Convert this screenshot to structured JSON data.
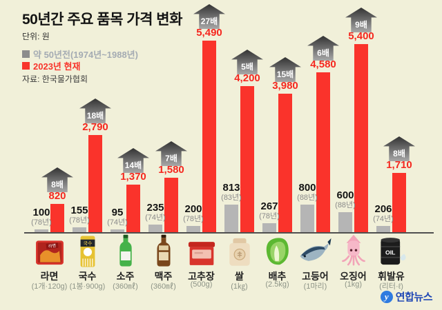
{
  "header": {
    "title": "50년간 주요 품목 가격 변화",
    "unit": "단위: 원",
    "legend_old": "약 50년전(1974년~1988년)",
    "legend_new": "2023년 현재",
    "source": "자료: 한국물가협회"
  },
  "footer": {
    "credit": "연합뉴스"
  },
  "colors": {
    "background": "#f1f0d9",
    "bar_old": "#b5b5b5",
    "bar_new": "#fa332b",
    "new_value_text": "#f5271f",
    "legend_old_text": "#a4abb3",
    "badge_gradient_top": "#333333",
    "badge_gradient_bottom": "#a8a8a8",
    "credit_blue": "#1f47b5"
  },
  "chart_data": {
    "type": "bar",
    "title": "50년간 주요 품목 가격 변화",
    "unit": "원",
    "legend_position": "top-left",
    "grid": false,
    "series": [
      {
        "name": "약 50년전(1974년~1988년)",
        "color": "#b5b5b5"
      },
      {
        "name": "2023년 현재",
        "color": "#fa332b"
      }
    ],
    "items": [
      {
        "name": "라면",
        "quantity": "(1개·120g)",
        "icon": "ramen-pack-icon",
        "old_value": 100,
        "old_label": "100",
        "old_year": "(78년)",
        "new_value": 820,
        "new_label": "820",
        "multiplier": "8배"
      },
      {
        "name": "국수",
        "quantity": "(1봉·900g)",
        "icon": "noodle-pack-icon",
        "old_value": 155,
        "old_label": "155",
        "old_year": "(78년)",
        "new_value": 2790,
        "new_label": "2,790",
        "multiplier": "18배"
      },
      {
        "name": "소주",
        "quantity": "(360㎖)",
        "icon": "soju-bottle-icon",
        "old_value": 95,
        "old_label": "95",
        "old_year": "(74년)",
        "new_value": 1370,
        "new_label": "1,370",
        "multiplier": "14배"
      },
      {
        "name": "맥주",
        "quantity": "(360㎖)",
        "icon": "beer-bottle-icon",
        "old_value": 235,
        "old_label": "235",
        "old_year": "(74년)",
        "new_value": 1580,
        "new_label": "1,580",
        "multiplier": "7배"
      },
      {
        "name": "고추장",
        "quantity": "(500g)",
        "icon": "gochujang-tub-icon",
        "old_value": 200,
        "old_label": "200",
        "old_year": "(78년)",
        "new_value": 5490,
        "new_label": "5,490",
        "multiplier": "27배"
      },
      {
        "name": "쌀",
        "quantity": "(1㎏)",
        "icon": "rice-sack-icon",
        "old_value": 813,
        "old_label": "813",
        "old_year": "(83년)",
        "new_value": 4200,
        "new_label": "4,200",
        "multiplier": "5배"
      },
      {
        "name": "배추",
        "quantity": "(2.5kg)",
        "icon": "cabbage-icon",
        "old_value": 267,
        "old_label": "267",
        "old_year": "(78년)",
        "new_value": 3980,
        "new_label": "3,980",
        "multiplier": "15배"
      },
      {
        "name": "고등어",
        "quantity": "(1마리)",
        "icon": "mackerel-icon",
        "old_value": 800,
        "old_label": "800",
        "old_year": "(88년)",
        "new_value": 4580,
        "new_label": "4,580",
        "multiplier": "6배"
      },
      {
        "name": "오징어",
        "quantity": "(1kg)",
        "icon": "squid-icon",
        "old_value": 600,
        "old_label": "600",
        "old_year": "(88년)",
        "new_value": 5400,
        "new_label": "5,400",
        "multiplier": "9배"
      },
      {
        "name": "휘발유",
        "quantity": "(리터·ℓ)",
        "icon": "oil-drum-icon",
        "old_value": 206,
        "old_label": "206",
        "old_year": "(74년)",
        "new_value": 1710,
        "new_label": "1,710",
        "multiplier": "8배"
      }
    ]
  }
}
